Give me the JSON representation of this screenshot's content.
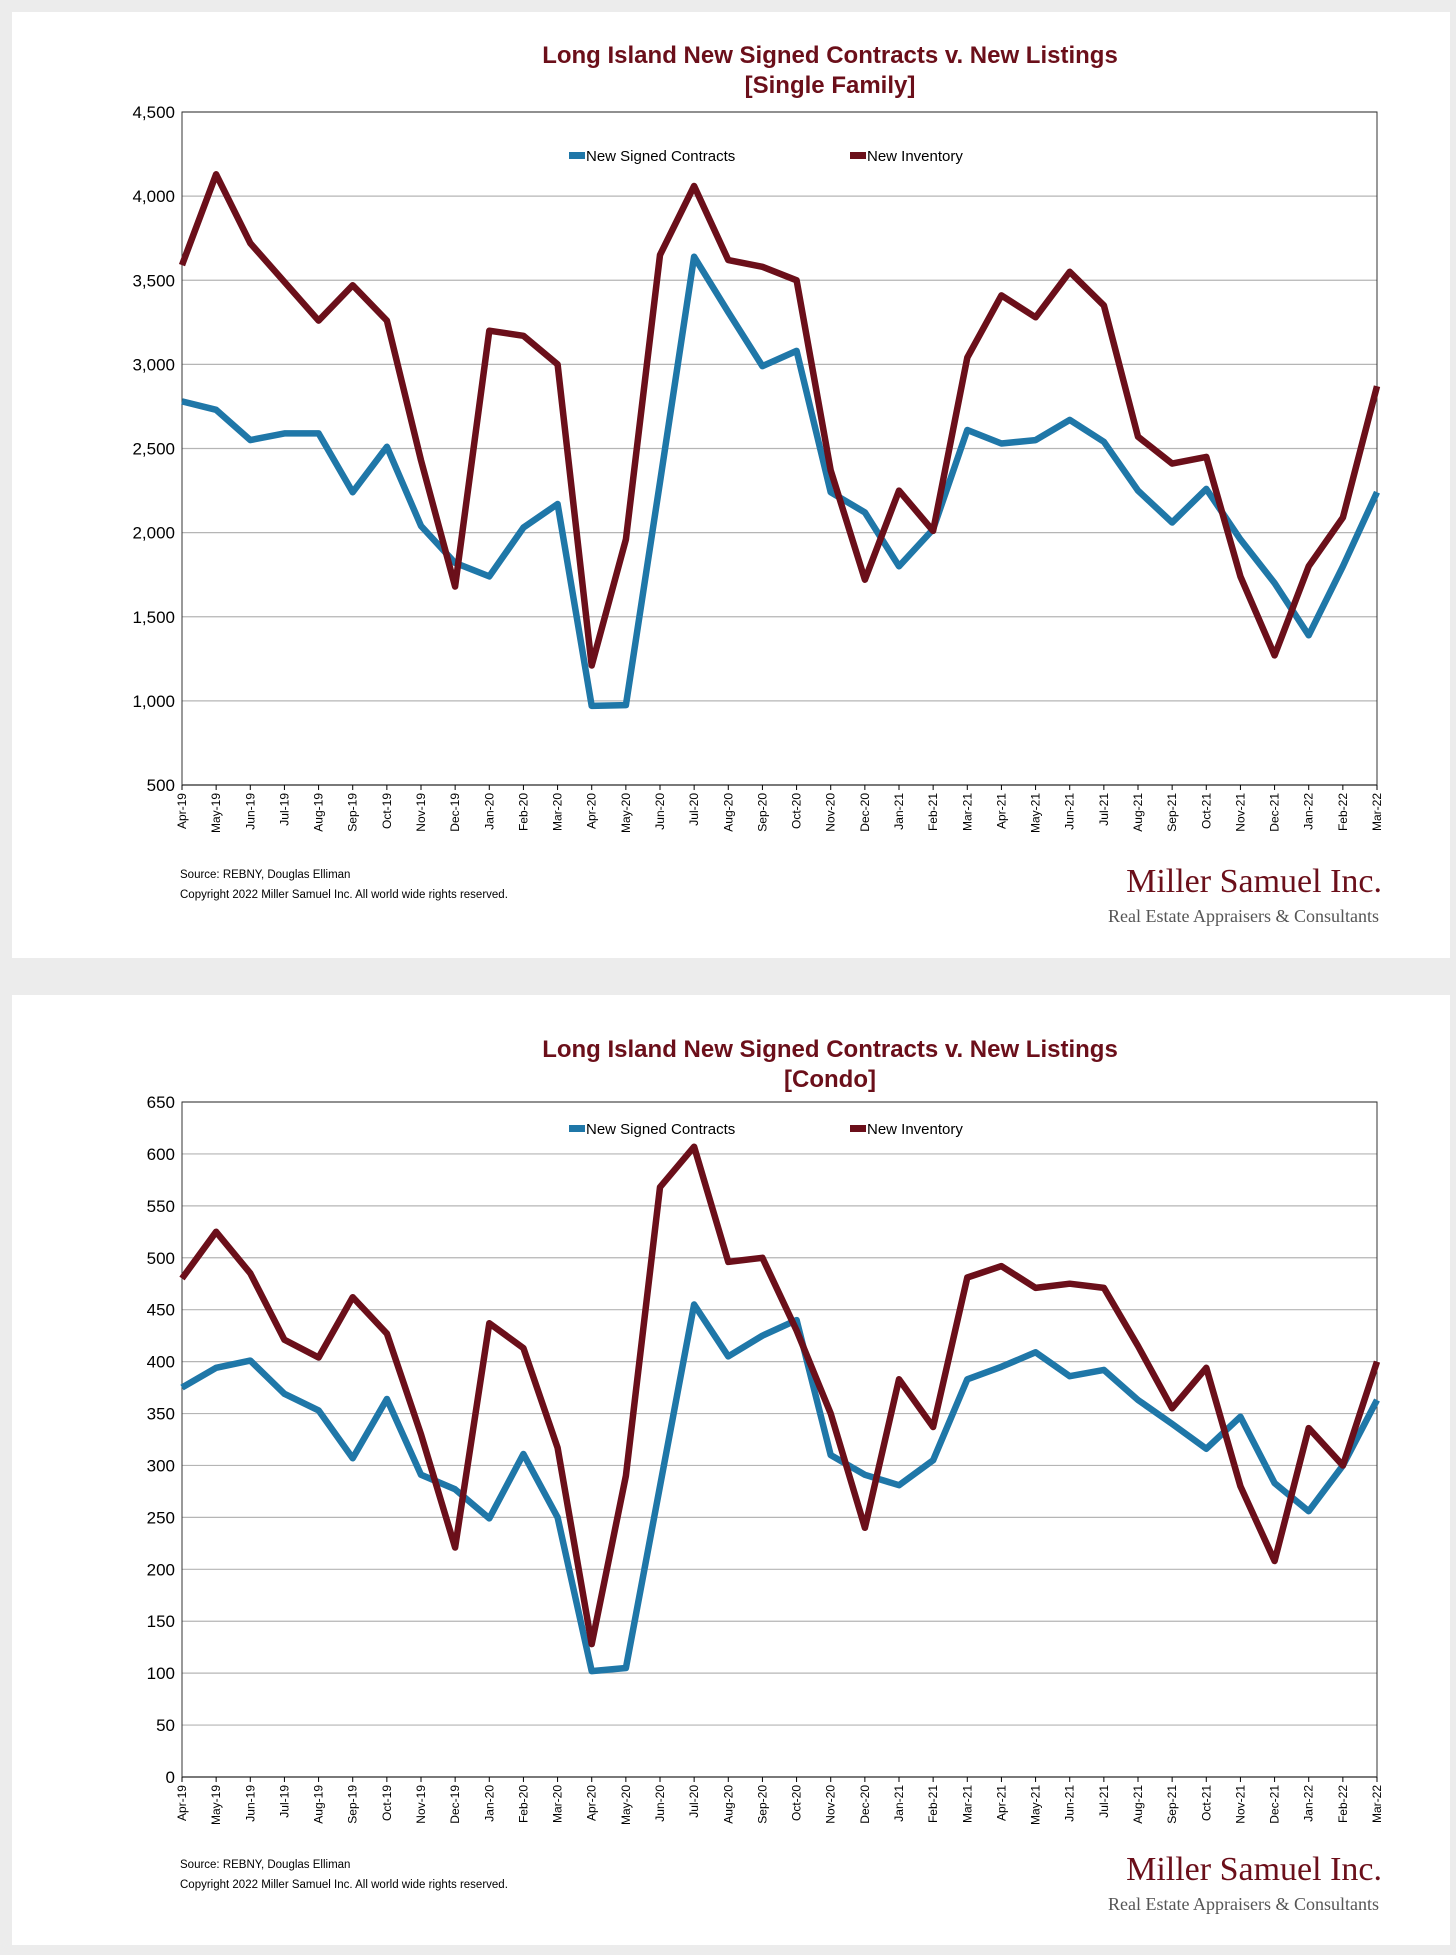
{
  "colors": {
    "contracts": "#1f77a8",
    "inventory": "#6b0f1a",
    "grid": "#b5b5b5"
  },
  "footer": {
    "source": "Source: REBNY, Douglas Elliman",
    "copyright": "Copyright 2022 Miller Samuel Inc.  All world wide rights reserved.",
    "logo_name": "Miller Samuel Inc.",
    "logo_tagline": "Real Estate Appraisers & Consultants"
  },
  "chart_data": [
    {
      "type": "line",
      "title": "Long Island New Signed Contracts v. New Listings",
      "subtitle": "[Single Family]",
      "xlabel": "",
      "ylabel": "",
      "ylim": [
        500,
        4500
      ],
      "yticks": [
        "500",
        "1,000",
        "1,500",
        "2,000",
        "2,500",
        "3,000",
        "3,500",
        "4,000",
        "4,500"
      ],
      "ytick_values": [
        500,
        1000,
        1500,
        2000,
        2500,
        3000,
        3500,
        4000,
        4500
      ],
      "grid": true,
      "legend_position": "top-center",
      "categories": [
        "Apr-19",
        "May-19",
        "Jun-19",
        "Jul-19",
        "Aug-19",
        "Sep-19",
        "Oct-19",
        "Nov-19",
        "Dec-19",
        "Jan-20",
        "Feb-20",
        "Mar-20",
        "Apr-20",
        "May-20",
        "Jun-20",
        "Jul-20",
        "Aug-20",
        "Sep-20",
        "Oct-20",
        "Nov-20",
        "Dec-20",
        "Jan-21",
        "Feb-21",
        "Mar-21",
        "Apr-21",
        "May-21",
        "Jun-21",
        "Jul-21",
        "Aug-21",
        "Sep-21",
        "Oct-21",
        "Nov-21",
        "Dec-21",
        "Jan-22",
        "Feb-22",
        "Mar-22"
      ],
      "series": [
        {
          "name": "New Signed Contracts",
          "values": [
            2780,
            2730,
            2550,
            2590,
            2590,
            2240,
            2510,
            2040,
            1820,
            1740,
            2030,
            2170,
            970,
            975,
            2300,
            3640,
            3310,
            2990,
            3080,
            2240,
            2120,
            1800,
            2020,
            2610,
            2530,
            2550,
            2670,
            2540,
            2250,
            2060,
            2260,
            1960,
            1700,
            1390,
            1800,
            2240
          ]
        },
        {
          "name": "New Inventory",
          "values": [
            3590,
            4130,
            3720,
            3490,
            3260,
            3470,
            3260,
            2430,
            1680,
            3200,
            3170,
            3000,
            1210,
            1960,
            3650,
            4060,
            3620,
            3580,
            3500,
            2370,
            1720,
            2250,
            2010,
            3040,
            3410,
            3280,
            3550,
            3350,
            2570,
            2410,
            2450,
            1740,
            1270,
            1800,
            2090,
            2870
          ]
        }
      ]
    },
    {
      "type": "line",
      "title": "Long Island New Signed Contracts v. New Listings",
      "subtitle": "[Condo]",
      "xlabel": "",
      "ylabel": "",
      "ylim": [
        0,
        650
      ],
      "yticks": [
        "0",
        "50",
        "100",
        "150",
        "200",
        "250",
        "300",
        "350",
        "400",
        "450",
        "500",
        "550",
        "600",
        "650"
      ],
      "ytick_values": [
        0,
        50,
        100,
        150,
        200,
        250,
        300,
        350,
        400,
        450,
        500,
        550,
        600,
        650
      ],
      "grid": true,
      "legend_position": "top-center",
      "categories": [
        "Apr-19",
        "May-19",
        "Jun-19",
        "Jul-19",
        "Aug-19",
        "Sep-19",
        "Oct-19",
        "Nov-19",
        "Dec-19",
        "Jan-20",
        "Feb-20",
        "Mar-20",
        "Apr-20",
        "May-20",
        "Jun-20",
        "Jul-20",
        "Aug-20",
        "Sep-20",
        "Oct-20",
        "Nov-20",
        "Dec-20",
        "Jan-21",
        "Feb-21",
        "Mar-21",
        "Apr-21",
        "May-21",
        "Jun-21",
        "Jul-21",
        "Aug-21",
        "Sep-21",
        "Oct-21",
        "Nov-21",
        "Dec-21",
        "Jan-22",
        "Feb-22",
        "Mar-22"
      ],
      "series": [
        {
          "name": "New Signed Contracts",
          "values": [
            375,
            394,
            401,
            369,
            353,
            307,
            364,
            291,
            277,
            249,
            311,
            250,
            102,
            105,
            280,
            455,
            405,
            425,
            440,
            310,
            291,
            281,
            305,
            383,
            395,
            409,
            386,
            392,
            363,
            340,
            316,
            347,
            283,
            256,
            300,
            363
          ]
        },
        {
          "name": "New Inventory",
          "values": [
            480,
            525,
            485,
            421,
            404,
            462,
            427,
            330,
            221,
            437,
            413,
            317,
            128,
            290,
            568,
            607,
            496,
            500,
            430,
            350,
            240,
            383,
            337,
            481,
            492,
            471,
            475,
            471,
            415,
            355,
            394,
            280,
            208,
            336,
            300,
            400
          ]
        }
      ]
    }
  ]
}
